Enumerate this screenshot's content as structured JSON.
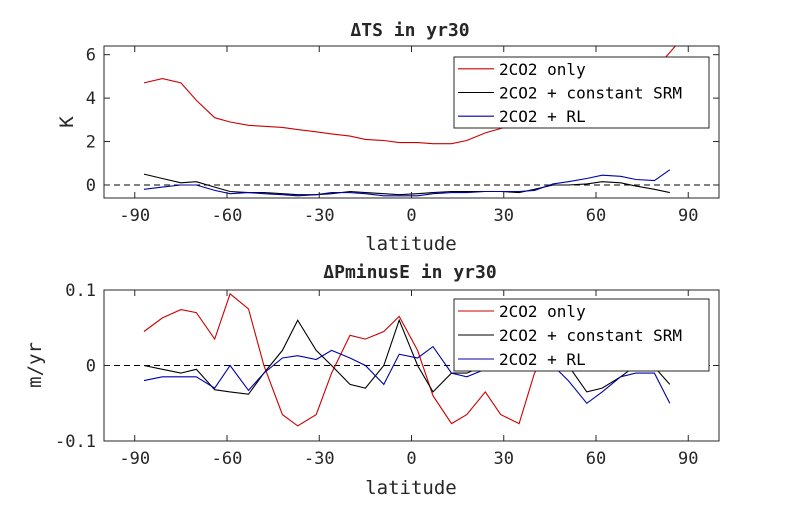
{
  "chart_data": [
    {
      "type": "line",
      "title": "ΔTS in yr30",
      "xlabel": "latitude",
      "ylabel": "K",
      "xlim": [
        -100,
        100
      ],
      "ylim": [
        -0.6,
        6.4
      ],
      "xticks": [
        "-90",
        "-60",
        "-30",
        "0",
        "30",
        "60",
        "90"
      ],
      "yticks": [
        "0",
        "2",
        "4",
        "6"
      ],
      "legend_position": "top-right",
      "zero_line": true,
      "series": [
        {
          "name": "2CO2 only",
          "color": "#cc0000",
          "x": [
            -87,
            -81,
            -75,
            -70,
            -64,
            -59,
            -53,
            -48,
            -42,
            -37,
            -31,
            -26,
            -20,
            -15,
            -9,
            -4,
            2,
            7,
            13,
            18,
            24,
            29,
            35,
            40,
            46,
            51,
            57,
            62,
            68,
            73,
            79,
            84,
            87
          ],
          "y": [
            4.7,
            4.9,
            4.7,
            3.9,
            3.1,
            2.9,
            2.75,
            2.7,
            2.65,
            2.55,
            2.45,
            2.35,
            2.25,
            2.1,
            2.05,
            1.95,
            1.95,
            1.9,
            1.9,
            2.05,
            2.4,
            2.6,
            2.8,
            3.0,
            3.2,
            3.4,
            3.6,
            3.9,
            4.2,
            4.6,
            5.3,
            6.1,
            6.6
          ]
        },
        {
          "name": "2CO2 + constant SRM",
          "color": "#000000",
          "x": [
            -87,
            -81,
            -75,
            -70,
            -64,
            -59,
            -53,
            -48,
            -42,
            -37,
            -31,
            -26,
            -20,
            -15,
            -9,
            -4,
            2,
            7,
            13,
            18,
            24,
            29,
            35,
            40,
            46,
            51,
            57,
            62,
            68,
            73,
            79,
            84
          ],
          "y": [
            0.5,
            0.3,
            0.1,
            0.15,
            -0.1,
            -0.3,
            -0.35,
            -0.35,
            -0.4,
            -0.45,
            -0.45,
            -0.4,
            -0.3,
            -0.35,
            -0.4,
            -0.45,
            -0.4,
            -0.35,
            -0.3,
            -0.3,
            -0.3,
            -0.3,
            -0.35,
            -0.2,
            0.0,
            0.0,
            0.05,
            0.15,
            0.1,
            -0.05,
            -0.2,
            -0.35
          ]
        },
        {
          "name": "2CO2 + RL",
          "color": "#0000aa",
          "x": [
            -87,
            -81,
            -75,
            -70,
            -64,
            -59,
            -53,
            -48,
            -42,
            -37,
            -31,
            -26,
            -20,
            -15,
            -9,
            -4,
            2,
            7,
            13,
            18,
            24,
            29,
            35,
            40,
            46,
            51,
            57,
            62,
            68,
            73,
            79,
            84
          ],
          "y": [
            -0.2,
            -0.1,
            0.0,
            0.0,
            -0.25,
            -0.4,
            -0.35,
            -0.4,
            -0.45,
            -0.5,
            -0.45,
            -0.35,
            -0.35,
            -0.4,
            -0.5,
            -0.5,
            -0.5,
            -0.4,
            -0.35,
            -0.35,
            -0.3,
            -0.3,
            -0.3,
            -0.25,
            0.05,
            0.15,
            0.3,
            0.45,
            0.4,
            0.25,
            0.2,
            0.7
          ]
        }
      ]
    },
    {
      "type": "line",
      "title": "ΔPminusE in yr30",
      "xlabel": "latitude",
      "ylabel": "m/yr",
      "xlim": [
        -100,
        100
      ],
      "ylim": [
        -0.1,
        0.1
      ],
      "xticks": [
        "-90",
        "-60",
        "-30",
        "0",
        "30",
        "60",
        "90"
      ],
      "yticks": [
        "0.1",
        "0",
        "-0.1"
      ],
      "legend_position": "top-right",
      "zero_line": true,
      "series": [
        {
          "name": "2CO2 only",
          "color": "#cc0000",
          "x": [
            -87,
            -81,
            -75,
            -70,
            -64,
            -59,
            -53,
            -48,
            -42,
            -37,
            -31,
            -26,
            -20,
            -15,
            -9,
            -4,
            2,
            7,
            13,
            18,
            24,
            29,
            35,
            40,
            46,
            51,
            57,
            62,
            68,
            73,
            79,
            84
          ],
          "y": [
            0.045,
            0.063,
            0.074,
            0.07,
            0.035,
            0.095,
            0.075,
            0.0,
            -0.065,
            -0.08,
            -0.065,
            -0.01,
            0.04,
            0.035,
            0.045,
            0.065,
            0.02,
            -0.04,
            -0.077,
            -0.065,
            -0.035,
            -0.065,
            -0.077,
            -0.01,
            0.03,
            0.04,
            0.02,
            0.03,
            0.04,
            0.025,
            0.045,
            0.06
          ]
        },
        {
          "name": "2CO2 + constant SRM",
          "color": "#000000",
          "x": [
            -87,
            -81,
            -75,
            -70,
            -64,
            -59,
            -53,
            -48,
            -42,
            -37,
            -31,
            -26,
            -20,
            -15,
            -9,
            -4,
            2,
            7,
            13,
            18,
            24,
            29,
            35,
            40,
            46,
            51,
            57,
            62,
            68,
            73,
            79,
            84
          ],
          "y": [
            0.0,
            -0.005,
            -0.01,
            -0.005,
            -0.032,
            -0.035,
            -0.038,
            -0.01,
            0.02,
            0.06,
            0.02,
            0.0,
            -0.025,
            -0.03,
            0.0,
            0.06,
            0.0,
            -0.035,
            -0.01,
            -0.01,
            0.0,
            0.0,
            0.005,
            0.0,
            0.0,
            0.0,
            -0.035,
            -0.03,
            -0.015,
            0.0,
            -0.002,
            -0.025
          ]
        },
        {
          "name": "2CO2 + RL",
          "color": "#0000aa",
          "x": [
            -87,
            -81,
            -75,
            -70,
            -64,
            -59,
            -53,
            -48,
            -42,
            -37,
            -31,
            -26,
            -20,
            -15,
            -9,
            -4,
            2,
            7,
            13,
            18,
            24,
            29,
            35,
            40,
            46,
            51,
            57,
            62,
            68,
            73,
            79,
            84
          ],
          "y": [
            -0.02,
            -0.015,
            -0.015,
            -0.015,
            -0.03,
            0.0,
            -0.033,
            -0.01,
            0.01,
            0.013,
            0.008,
            0.02,
            0.01,
            0.0,
            -0.025,
            0.015,
            0.01,
            0.025,
            -0.01,
            -0.015,
            -0.005,
            0.0,
            0.0,
            0.0,
            0.0,
            -0.02,
            -0.05,
            -0.035,
            -0.015,
            -0.01,
            -0.01,
            -0.05
          ]
        }
      ]
    }
  ]
}
